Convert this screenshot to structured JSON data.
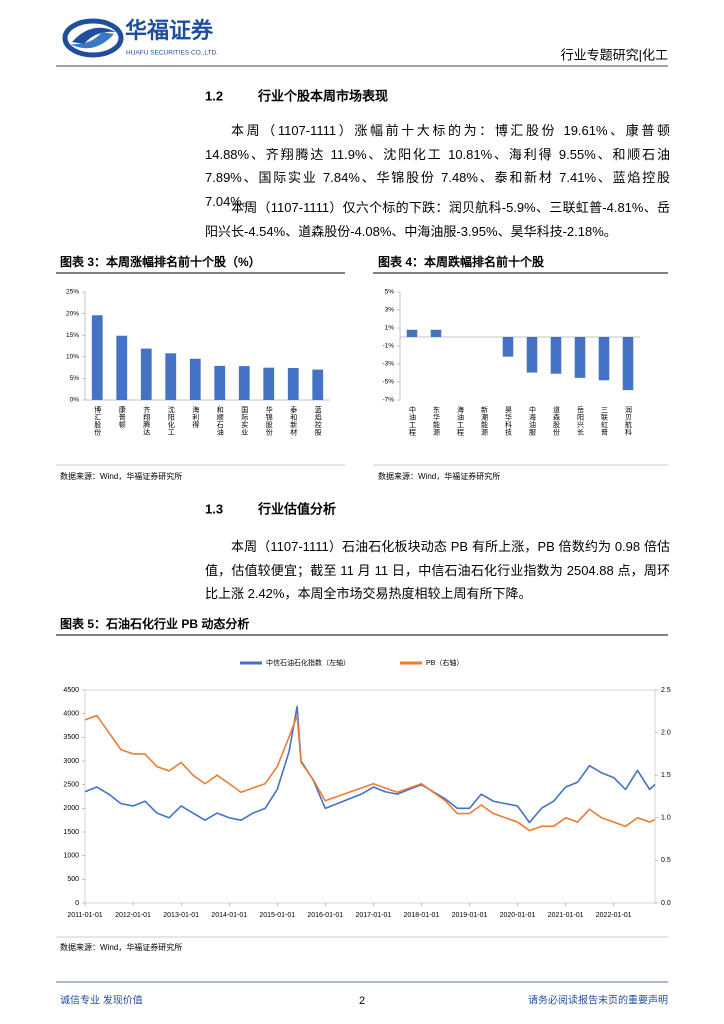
{
  "header": {
    "company": "华福证券",
    "company_en": "HUAFU SECURITIES CO.,LTD.",
    "report_type": "行业专题研究|化工"
  },
  "sections": [
    {
      "number": "1.2",
      "title": "行业个股本周市场表现",
      "paragraphs": [
        "本周（1107-1111）涨幅前十大标的为：博汇股份 19.61%、康普顿 14.88%、齐翔腾达 11.9%、沈阳化工 10.81%、海利得 9.55%、和顺石油 7.89%、国际实业 7.84%、华锦股份 7.48%、泰和新材 7.41%、蓝焰控股 7.04%。",
        "本周（1107-1111）仅六个标的下跌：润贝航科-5.9%、三联虹普-4.81%、岳阳兴长-4.54%、道森股份-4.08%、中海油服-3.95%、昊华科技-2.18%。"
      ]
    },
    {
      "number": "1.3",
      "title": "行业估值分析",
      "paragraphs": [
        "本周（1107-1111）石油石化板块动态 PB 有所上涨，PB 倍数约为 0.98 倍估值，估值较便宜；截至 11 月 11 日，中信石油石化行业指数为 2504.88 点，周环比上涨 2.42%，本周全市场交易热度相较上周有所下降。"
      ]
    }
  ],
  "figure_sources": [
    "数据来源：Wind，华福证券研究所",
    "数据来源：Wind，华福证券研究所",
    "数据来源：Wind，华福证券研究所"
  ],
  "chart_data": [
    {
      "type": "bar",
      "title": "图表 3：本周涨幅排名前十个股（%）",
      "categories": [
        "博汇股份",
        "康普顿",
        "齐翔腾达",
        "沈阳化工",
        "海利得",
        "和顺石油",
        "国际实业",
        "华锦股份",
        "泰和新材",
        "蓝焰控股"
      ],
      "values": [
        19.61,
        14.88,
        11.9,
        10.81,
        9.55,
        7.89,
        7.84,
        7.48,
        7.41,
        7.04
      ],
      "color": "#4472c4",
      "ylim": [
        0,
        25
      ],
      "yticks": [
        {
          "value": 0,
          "label": "0%"
        },
        {
          "value": 5,
          "label": "5%"
        },
        {
          "value": 10,
          "label": "10%"
        },
        {
          "value": 15,
          "label": "15%"
        },
        {
          "value": 20,
          "label": "20%"
        },
        {
          "value": 25,
          "label": "25%"
        }
      ]
    },
    {
      "type": "bar",
      "title": "图表 4：本周跌幅排名前十个股",
      "categories": [
        "中油工程",
        "东华能源",
        "海油工程",
        "新潮能源",
        "昊华科技",
        "中海油服",
        "道森股份",
        "岳阳兴长",
        "三联虹普",
        "润贝航科"
      ],
      "values": [
        0.8,
        0.8,
        0,
        0,
        -2.18,
        -3.95,
        -4.08,
        -4.54,
        -4.81,
        -5.9
      ],
      "color": "#4472c4",
      "ylim": [
        -7,
        5
      ],
      "yticks": [
        {
          "value": -7,
          "label": "-7%"
        },
        {
          "value": -5,
          "label": "-5%"
        },
        {
          "value": -3,
          "label": "-3%"
        },
        {
          "value": -1,
          "label": "-1%"
        },
        {
          "value": 1,
          "label": "1%"
        },
        {
          "value": 3,
          "label": "3%"
        },
        {
          "value": 5,
          "label": "5%"
        }
      ]
    },
    {
      "type": "line",
      "title": "图表 5：石油石化行业 PB 动态分析",
      "x": [
        "2011-01-01",
        "2011-04-01",
        "2011-07-01",
        "2011-10-01",
        "2012-01-01",
        "2012-04-01",
        "2012-07-01",
        "2012-10-01",
        "2013-01-01",
        "2013-04-01",
        "2013-07-01",
        "2013-10-01",
        "2014-01-01",
        "2014-04-01",
        "2014-07-01",
        "2014-10-01",
        "2015-01-01",
        "2015-04-01",
        "2015-06-01",
        "2015-07-01",
        "2015-10-01",
        "2016-01-01",
        "2016-04-01",
        "2016-07-01",
        "2016-10-01",
        "2017-01-01",
        "2017-04-01",
        "2017-07-01",
        "2017-10-01",
        "2018-01-01",
        "2018-04-01",
        "2018-07-01",
        "2018-10-01",
        "2019-01-01",
        "2019-04-01",
        "2019-07-01",
        "2019-10-01",
        "2020-01-01",
        "2020-04-01",
        "2020-07-01",
        "2020-10-01",
        "2021-01-01",
        "2021-04-01",
        "2021-07-01",
        "2021-10-01",
        "2022-01-01",
        "2022-04-01",
        "2022-07-01",
        "2022-10-01",
        "2022-11-11"
      ],
      "series": [
        {
          "name": "中信石油石化指数（左轴）",
          "color": "#4472c4",
          "values": [
            2350,
            2450,
            2300,
            2100,
            2050,
            2150,
            1900,
            1800,
            2050,
            1900,
            1750,
            1900,
            1800,
            1750,
            1900,
            2000,
            2400,
            3200,
            4150,
            3000,
            2600,
            2000,
            2100,
            2200,
            2300,
            2450,
            2350,
            2300,
            2400,
            2500,
            2350,
            2200,
            2000,
            2000,
            2300,
            2150,
            2100,
            2050,
            1700,
            2000,
            2150,
            2450,
            2550,
            2900,
            2750,
            2650,
            2400,
            2800,
            2400,
            2504.88
          ]
        },
        {
          "name": "PB（右轴）",
          "color": "#ed7d31",
          "axis": "y2",
          "values": [
            2.15,
            2.2,
            2.0,
            1.8,
            1.75,
            1.75,
            1.6,
            1.55,
            1.65,
            1.5,
            1.4,
            1.5,
            1.4,
            1.3,
            1.35,
            1.4,
            1.6,
            1.95,
            2.2,
            1.65,
            1.45,
            1.2,
            1.25,
            1.3,
            1.35,
            1.4,
            1.35,
            1.3,
            1.35,
            1.4,
            1.3,
            1.2,
            1.05,
            1.05,
            1.15,
            1.05,
            1.0,
            0.95,
            0.85,
            0.9,
            0.9,
            1.0,
            0.95,
            1.1,
            1.0,
            0.95,
            0.9,
            1.0,
            0.95,
            0.98
          ]
        }
      ],
      "xlim": [
        "2011-01-01",
        "2022-11-11"
      ],
      "xticks": [
        "2011-01-01",
        "2012-01-01",
        "2013-01-01",
        "2014-01-01",
        "2015-01-01",
        "2016-01-01",
        "2017-01-01",
        "2018-01-01",
        "2019-01-01",
        "2020-01-01",
        "2021-01-01",
        "2022-01-01"
      ],
      "ylim": [
        0,
        4500
      ],
      "yticks": [
        0,
        500,
        1000,
        1500,
        2000,
        2500,
        3000,
        3500,
        4000,
        4500
      ],
      "y2lim": [
        0,
        2.5
      ],
      "y2ticks": [
        {
          "value": 0,
          "label": "0.0"
        },
        0.5,
        {
          "value": 1,
          "label": "1.0"
        },
        1.5,
        {
          "value": 2,
          "label": "2.0"
        },
        2.5
      ],
      "legend": "top"
    }
  ],
  "footer": {
    "slogan": "诚信专业  发现价值",
    "page": "2",
    "disclaimer": "请务必阅读报告末页的重要声明"
  }
}
